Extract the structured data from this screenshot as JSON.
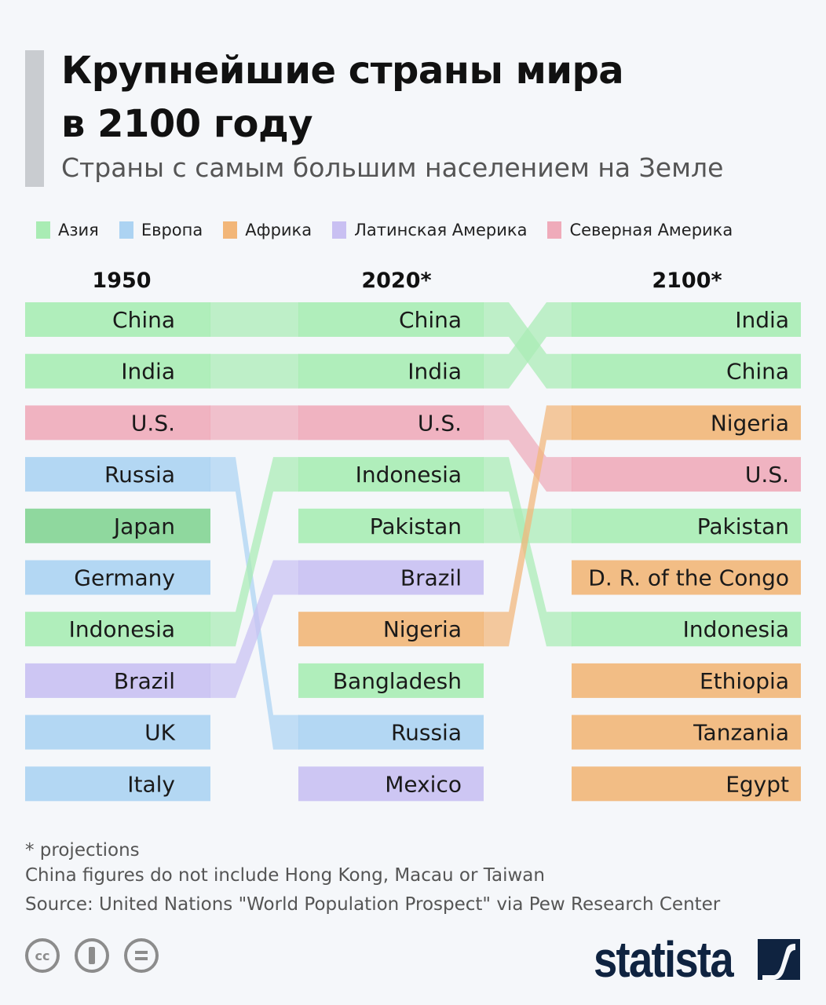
{
  "header": {
    "title_line1": "Крупнейшие страны мира",
    "title_line2": "в 2100 году",
    "subtitle": "Страны с самым большим населением на Земле"
  },
  "legend": [
    {
      "label": "Азия",
      "color": "#a9ecb4"
    },
    {
      "label": "Европа",
      "color": "#acd3f2"
    },
    {
      "label": "Африка",
      "color": "#f2b678"
    },
    {
      "label": "Латинская Америка",
      "color": "#c9c0f2"
    },
    {
      "label": "Северная Америка",
      "color": "#efabba"
    }
  ],
  "chart_data": {
    "type": "bump",
    "columns": [
      "1950",
      "2020*",
      "2100*"
    ],
    "rankings": [
      [
        "China",
        "India",
        "U.S.",
        "Russia",
        "Japan",
        "Germany",
        "Indonesia",
        "Brazil",
        "UK",
        "Italy"
      ],
      [
        "China",
        "India",
        "U.S.",
        "Indonesia",
        "Pakistan",
        "Brazil",
        "Nigeria",
        "Bangladesh",
        "Russia",
        "Mexico"
      ],
      [
        "India",
        "China",
        "Nigeria",
        "U.S.",
        "Pakistan",
        "D. R. of the Congo",
        "Indonesia",
        "Ethiopia",
        "Tanzania",
        "Egypt"
      ]
    ],
    "regions": {
      "China": "Азия",
      "India": "Азия",
      "Japan": "Азия",
      "Indonesia": "Азия",
      "Pakistan": "Азия",
      "Bangladesh": "Азия",
      "Russia": "Европа",
      "Germany": "Европа",
      "UK": "Европа",
      "Italy": "Европа",
      "Nigeria": "Африка",
      "D. R. of the Congo": "Африка",
      "Ethiopia": "Африка",
      "Tanzania": "Африка",
      "Egypt": "Африка",
      "Brazil": "Латинская Америка",
      "Mexico": "Латинская Америка",
      "U.S.": "Северная Америка"
    }
  },
  "footer": {
    "note1": "* projections",
    "note2": "China figures do not include Hong Kong, Macau or Taiwan",
    "source": "Source: United Nations \"World Population Prospect\" via Pew Research Center",
    "license_icons": [
      "cc-icon",
      "attribution-icon",
      "no-derivatives-icon"
    ],
    "cc_text": "cc",
    "brand": "statista"
  }
}
